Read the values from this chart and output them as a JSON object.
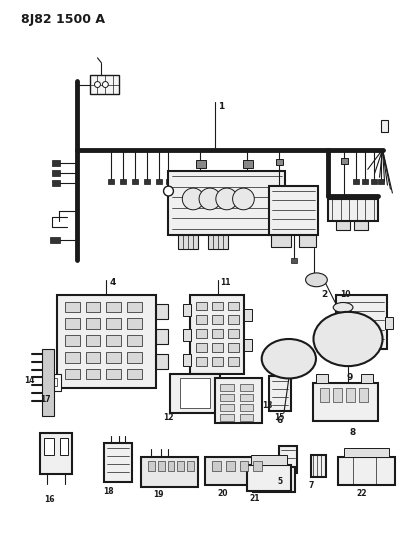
{
  "title": "8J82 1500 A",
  "bg_color": "#ffffff",
  "lc": "#1a1a1a",
  "title_fontsize": 9,
  "label_fontsize": 6.5,
  "fig_width": 4.08,
  "fig_height": 5.33,
  "dpi": 100
}
